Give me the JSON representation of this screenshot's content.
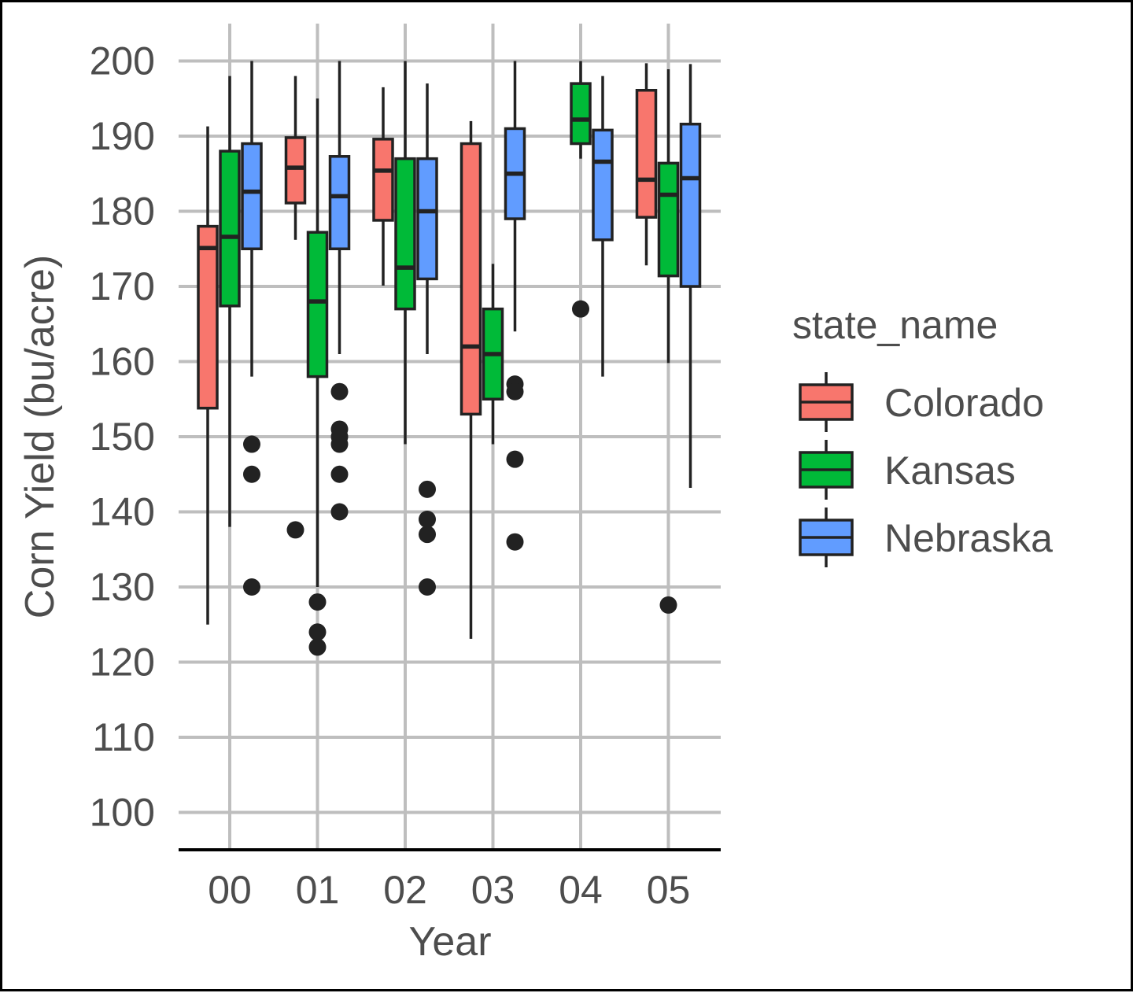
{
  "chart_data": {
    "type": "boxplot",
    "xlabel": "Year",
    "ylabel": "Corn Yield (bu/acre)",
    "categories": [
      "00",
      "01",
      "02",
      "03",
      "04",
      "05"
    ],
    "y_ticks": [
      "100",
      "110",
      "120",
      "130",
      "140",
      "150",
      "160",
      "170",
      "180",
      "190",
      "200"
    ],
    "ylim": [
      95,
      205
    ],
    "grid": true,
    "legend": {
      "title": "state_name",
      "position": "right",
      "entries": [
        "Colorado",
        "Kansas",
        "Nebraska"
      ]
    },
    "series": [
      {
        "name": "Colorado",
        "color": "#F8766D",
        "boxes": [
          {
            "category": "00",
            "whisker_low": 125,
            "q1": 153.8,
            "median": 175.1,
            "q3": 178,
            "whisker_high": 191.3,
            "outliers": []
          },
          {
            "category": "01",
            "whisker_low": 176.2,
            "q1": 181.1,
            "median": 185.8,
            "q3": 189.8,
            "whisker_high": 198,
            "outliers": [
              137.6
            ]
          },
          {
            "category": "02",
            "whisker_low": 170.1,
            "q1": 178.8,
            "median": 185.4,
            "q3": 189.6,
            "whisker_high": 196.5,
            "outliers": []
          },
          {
            "category": "03",
            "whisker_low": 123.1,
            "q1": 153,
            "median": 162,
            "q3": 189,
            "whisker_high": 192,
            "outliers": []
          },
          {
            "category": "05",
            "whisker_low": 172.8,
            "q1": 179.2,
            "median": 184.2,
            "q3": 196.1,
            "whisker_high": 199.7,
            "outliers": []
          }
        ]
      },
      {
        "name": "Kansas",
        "color": "#00BA38",
        "boxes": [
          {
            "category": "00",
            "whisker_low": 138,
            "q1": 167.4,
            "median": 176.6,
            "q3": 188,
            "whisker_high": 198,
            "outliers": []
          },
          {
            "category": "01",
            "whisker_low": 130,
            "q1": 158,
            "median": 168,
            "q3": 177.2,
            "whisker_high": 195,
            "outliers": [
              128,
              124,
              122
            ]
          },
          {
            "category": "02",
            "whisker_low": 149,
            "q1": 167,
            "median": 172.5,
            "q3": 187,
            "whisker_high": 200,
            "outliers": []
          },
          {
            "category": "03",
            "whisker_low": 149,
            "q1": 155,
            "median": 161,
            "q3": 167,
            "whisker_high": 173,
            "outliers": []
          },
          {
            "category": "04",
            "whisker_low": 187,
            "q1": 189,
            "median": 192.2,
            "q3": 197,
            "whisker_high": 200,
            "outliers": [
              167
            ]
          },
          {
            "category": "05",
            "whisker_low": 159.8,
            "q1": 171.4,
            "median": 182.2,
            "q3": 186.4,
            "whisker_high": 198.9,
            "outliers": [
              127.6
            ]
          }
        ]
      },
      {
        "name": "Nebraska",
        "color": "#619CFF",
        "boxes": [
          {
            "category": "00",
            "whisker_low": 158,
            "q1": 175,
            "median": 182.6,
            "q3": 189,
            "whisker_high": 200,
            "outliers": [
              149,
              145,
              130
            ]
          },
          {
            "category": "01",
            "whisker_low": 161,
            "q1": 175,
            "median": 182,
            "q3": 187.3,
            "whisker_high": 200,
            "outliers": [
              156,
              151,
              150,
              149,
              145,
              140
            ]
          },
          {
            "category": "02",
            "whisker_low": 161,
            "q1": 171,
            "median": 180,
            "q3": 187,
            "whisker_high": 197,
            "outliers": [
              143,
              139,
              137,
              130
            ]
          },
          {
            "category": "03",
            "whisker_low": 164,
            "q1": 179,
            "median": 185,
            "q3": 191,
            "whisker_high": 200,
            "outliers": [
              157,
              156,
              147,
              136
            ]
          },
          {
            "category": "04",
            "whisker_low": 158,
            "q1": 176.2,
            "median": 186.6,
            "q3": 190.8,
            "whisker_high": 198,
            "outliers": []
          },
          {
            "category": "05",
            "whisker_low": 143.2,
            "q1": 170,
            "median": 184.4,
            "q3": 191.6,
            "whisker_high": 199.6,
            "outliers": []
          }
        ]
      }
    ]
  }
}
